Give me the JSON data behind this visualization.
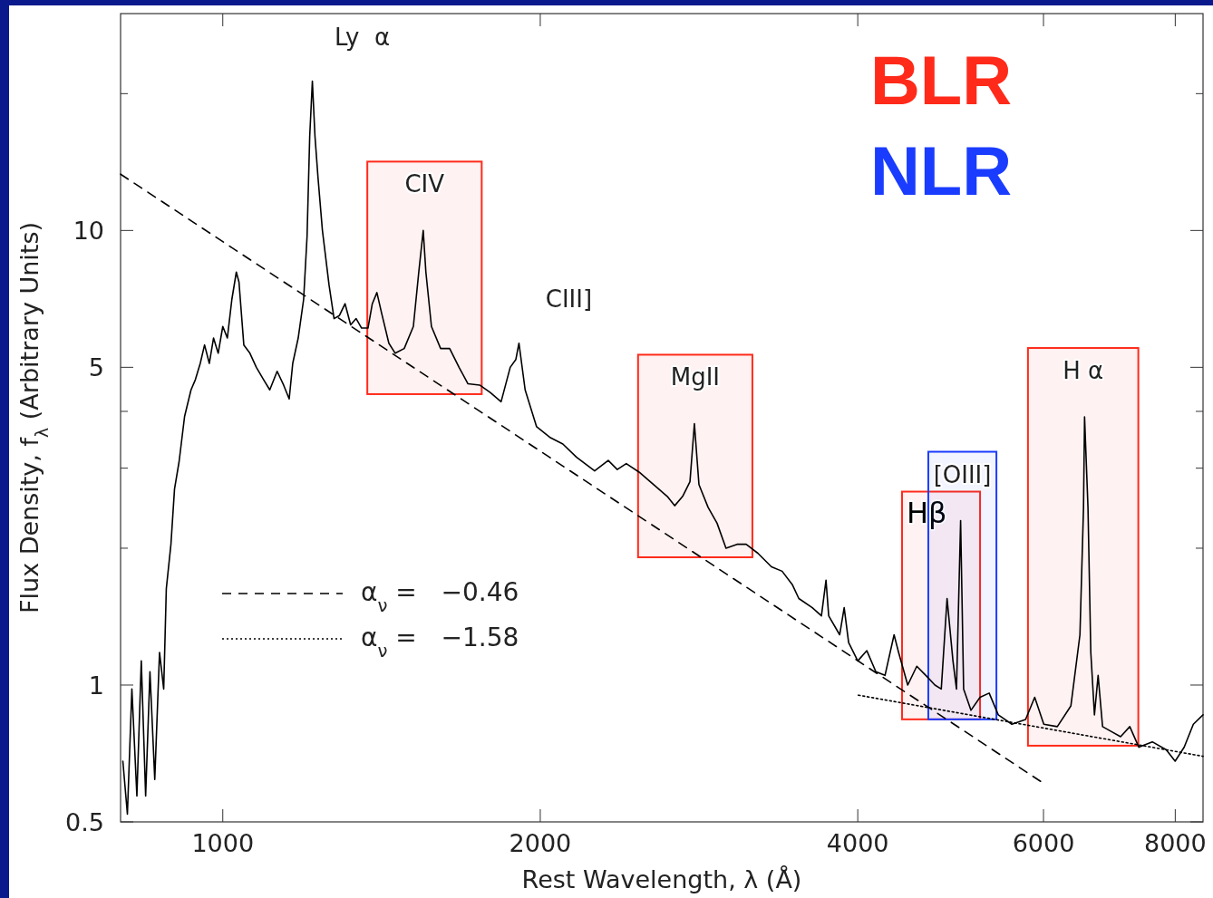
{
  "chart_data": {
    "type": "line",
    "xlabel": "Rest Wavelength, λ (Å)",
    "ylabel": "Flux Density, f$_{λ}$ (Arbitrary Units)",
    "log": "xy",
    "xlim": [
      800,
      8500
    ],
    "ylim": [
      0.5,
      30
    ],
    "xticks": [
      1000,
      2000,
      4000,
      6000,
      8000
    ],
    "yticks": [
      0.5,
      1,
      {
        "value": 2,
        "label": null
      },
      {
        "value": 3,
        "label": null
      },
      {
        "value": 4,
        "label": null
      },
      5,
      10,
      {
        "value": 20,
        "label": null
      }
    ],
    "grid": false,
    "legend": "left",
    "series": [
      {
        "color": "#000000",
        "line_style": "solid",
        "x": [
          804,
          812,
          820,
          829,
          837,
          845,
          853,
          862,
          871,
          879,
          884,
          893,
          900,
          909,
          920,
          933,
          942,
          952,
          961,
          971,
          980,
          990,
          1000,
          1010,
          1020,
          1030,
          1036,
          1047,
          1061,
          1076,
          1093,
          1108,
          1126,
          1142,
          1156,
          1165,
          1179,
          1193,
          1202,
          1209,
          1216,
          1223,
          1231,
          1243,
          1261,
          1275,
          1290,
          1306,
          1322,
          1338,
          1354,
          1373,
          1386,
          1400,
          1414,
          1437,
          1457,
          1486,
          1516,
          1534,
          1549,
          1558,
          1577,
          1609,
          1641,
          1675,
          1708,
          1752,
          1793,
          1836,
          1873,
          1896,
          1909,
          1935,
          1984,
          2045,
          2101,
          2165,
          2252,
          2320,
          2366,
          2413,
          2487,
          2562,
          2639,
          2682,
          2729,
          2773,
          2800,
          2828,
          2885,
          2942,
          3000,
          3073,
          3135,
          3216,
          3313,
          3391,
          3469,
          3517,
          3622,
          3695,
          3732,
          3754,
          3845,
          3883,
          3921,
          4000,
          4080,
          4161,
          4245,
          4330,
          4373,
          4461,
          4550,
          4641,
          4734,
          4800,
          4861,
          4924,
          4962,
          5007,
          5040,
          5121,
          5224,
          5329,
          5436,
          5600,
          5770,
          5886,
          6004,
          6184,
          6370,
          6497,
          6548,
          6563,
          6612,
          6653,
          6706,
          6760,
          6826,
          6960,
          7100,
          7244,
          7389,
          7609,
          7845,
          7998,
          8158,
          8322,
          8500
        ],
        "values": [
          0.68,
          0.52,
          0.98,
          0.57,
          1.13,
          0.57,
          1.07,
          0.62,
          1.18,
          0.98,
          1.63,
          2.04,
          2.7,
          3.1,
          3.9,
          4.46,
          4.7,
          5.1,
          5.6,
          5.1,
          5.8,
          5.37,
          6.15,
          5.8,
          7.05,
          8.1,
          7.7,
          5.6,
          5.37,
          5,
          4.7,
          4.46,
          4.9,
          4.57,
          4.26,
          5.1,
          5.8,
          7.05,
          9.7,
          16.1,
          21.3,
          16.1,
          13.1,
          10,
          7.6,
          6.4,
          6.5,
          6.9,
          6.2,
          6.4,
          6.1,
          6.1,
          6.9,
          7.3,
          6.6,
          5.65,
          5.37,
          5.5,
          6.15,
          8.1,
          10,
          8.1,
          6.15,
          5.5,
          5.5,
          5,
          4.6,
          4.57,
          4.4,
          4.2,
          5,
          5.2,
          5.65,
          4.46,
          3.7,
          3.5,
          3.39,
          3.17,
          2.96,
          3.12,
          2.98,
          3.07,
          2.93,
          2.76,
          2.6,
          2.48,
          2.6,
          2.8,
          3.76,
          2.76,
          2.46,
          2.27,
          2.0,
          2.04,
          2.04,
          1.95,
          1.82,
          1.78,
          1.66,
          1.55,
          1.48,
          1.42,
          1.7,
          1.42,
          1.29,
          1.48,
          1.24,
          1.13,
          1.19,
          1.07,
          1.05,
          1.29,
          1.18,
          1.0,
          1.1,
          1.05,
          1.0,
          0.98,
          1.55,
          1.13,
          0.98,
          2.3,
          0.98,
          0.88,
          0.94,
          0.96,
          0.86,
          0.82,
          0.84,
          0.94,
          0.82,
          0.81,
          0.9,
          1.29,
          2.46,
          3.89,
          2.46,
          1.18,
          0.86,
          1.05,
          0.81,
          0.79,
          0.77,
          0.81,
          0.73,
          0.75,
          0.72,
          0.68,
          0.73,
          0.82,
          0.86
        ]
      },
      {
        "name": "α$_{ν}$ =   −0.46",
        "color": "#000000",
        "line_style": "dashed",
        "x": [
          800,
          6026
        ],
        "values": [
          13.3,
          0.604
        ]
      },
      {
        "name": "α$_{ν}$ =   −1.58",
        "color": "#000000",
        "line_style": "dotted",
        "x": [
          4005,
          8500
        ],
        "values": [
          0.95,
          0.697
        ]
      }
    ],
    "bands": [
      {
        "axis": "x",
        "from": 1371,
        "to": 1760,
        "label": "CIV",
        "color": "#ff2a1a"
      },
      {
        "axis": "x",
        "from": 2476,
        "to": 3178,
        "label": "MgII",
        "color": "#ff2a1a"
      },
      {
        "axis": "x",
        "from": 4406,
        "to": 5224,
        "label": "Hβ",
        "color": "#ff2a1a"
      },
      {
        "axis": "x",
        "from": 4666,
        "to": 5414,
        "label": "[OIII]",
        "color": "#1a3cff"
      },
      {
        "axis": "x",
        "from": 5800,
        "to": 7380,
        "label": "H  α",
        "color": "#ff2a1a"
      }
    ],
    "annotations": [
      {
        "text": "Ly  α",
        "x": 1216,
        "y": 21.3
      },
      {
        "text": "CIII]",
        "x": 1909,
        "y": 5.65
      },
      "BLR",
      "NLR"
    ]
  }
}
